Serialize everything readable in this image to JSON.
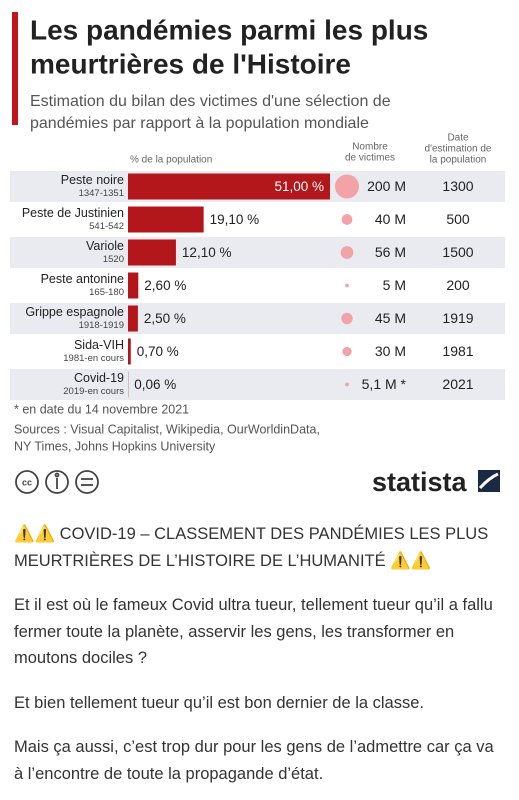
{
  "chart_data": {
    "type": "bar",
    "title_lines": [
      "Les pandémies parmi les plus",
      "meurtrières de l'Histoire"
    ],
    "subtitle_lines": [
      "Estimation du bilan des victimes d'une sélection de",
      "pandémies par rapport à la population mondiale"
    ],
    "value_axis_label": "% de la population",
    "victims_header": [
      "Nombre",
      "de victimes"
    ],
    "year_header": [
      "Date",
      "d'estimation de",
      "la population"
    ],
    "categories": [
      "Peste noire",
      "Peste de Justinien",
      "Variole",
      "Peste antonine",
      "Grippe espagnole",
      "Sida-VIH",
      "Covid-19"
    ],
    "periods": [
      "1347-1351",
      "541-542",
      "1520",
      "165-180",
      "1918-1919",
      "1981-en cours",
      "2019-en cours"
    ],
    "values": [
      51,
      19.1,
      12.1,
      2.6,
      2.5,
      0.7,
      0.06
    ],
    "value_labels": [
      "51,00 %",
      "19,10 %",
      "12,10 %",
      "2,60 %",
      "2,50 %",
      "0,70 %",
      "0,06 %"
    ],
    "color": "#b3161b",
    "victims_millions": [
      200,
      40,
      56,
      5,
      45,
      30,
      5.1
    ],
    "victims_labels": [
      "200 M",
      "40 M",
      "56 M",
      "5 M",
      "45 M",
      "30 M",
      "5,1 M *"
    ],
    "bubble_color": "#f2a3a8",
    "population_years": [
      1300,
      500,
      1500,
      200,
      1919,
      1981,
      2021
    ],
    "footnote": "* en date du 14 novembre 2021",
    "sources_lines": [
      "Sources : Visual Capitalist, Wikipedia, OurWorldinData,",
      "NY Times, Johns Hopkins University"
    ],
    "brand": "statista"
  },
  "post": {
    "heading": "⚠️⚠️ COVID-19 – CLASSEMENT DES PANDÉMIES LES PLUS MEURTRIÈRES DE L’HISTOIRE DE L’HUMANITÉ ⚠️⚠️",
    "paragraphs": [
      "Et il est où le fameux Covid ultra tueur, tellement tueur qu’il a fallu fermer toute la planète, asservir les gens, les transformer en moutons dociles ?",
      "Et bien tellement tueur qu’il est bon dernier de la classe.",
      "Mais ça aussi, c’est trop dur pour les gens de l’admettre car ça va à l’encontre de toute la propagande d’état."
    ]
  }
}
